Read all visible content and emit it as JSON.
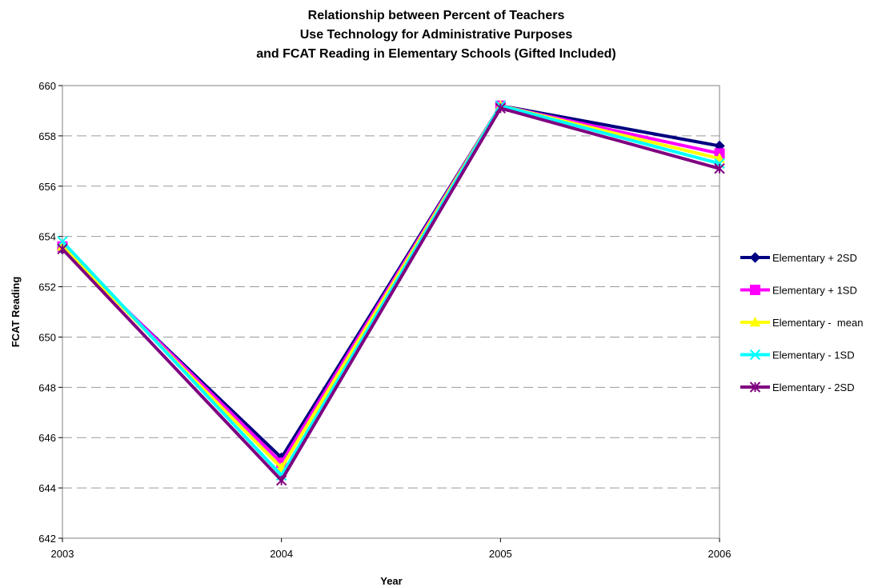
{
  "chart_data": {
    "type": "line",
    "title_lines": [
      "Relationship between Percent of Teachers",
      "Use Technology for Administrative Purposes",
      "and FCAT Reading in Elementary Schools (Gifted Included)"
    ],
    "xlabel": "Year",
    "ylabel": "FCAT Reading",
    "x": [
      "2003",
      "2004",
      "2005",
      "2006"
    ],
    "ylim": [
      642,
      660
    ],
    "yticks": [
      "642",
      "644",
      "646",
      "648",
      "650",
      "652",
      "654",
      "656",
      "658",
      "660"
    ],
    "grid": "horizontal dashed",
    "legend_position": "right",
    "series": [
      {
        "name": "Elementary + 2SD",
        "color": "#000080",
        "marker": "diamond",
        "values": [
          653.5,
          645.2,
          659.2,
          657.6
        ]
      },
      {
        "name": "Elementary + 1SD",
        "color": "#ff00ff",
        "marker": "square",
        "values": [
          653.6,
          645.0,
          659.2,
          657.3
        ]
      },
      {
        "name": "Elementary -  mean",
        "color": "#ffff00",
        "marker": "triangle",
        "values": [
          653.6,
          644.8,
          659.2,
          657.1
        ]
      },
      {
        "name": "Elementary - 1SD",
        "color": "#00ffff",
        "marker": "x",
        "values": [
          653.8,
          644.5,
          659.2,
          656.9
        ]
      },
      {
        "name": "Elementary - 2SD",
        "color": "#800080",
        "marker": "star",
        "values": [
          653.5,
          644.3,
          659.1,
          656.7
        ]
      }
    ]
  }
}
